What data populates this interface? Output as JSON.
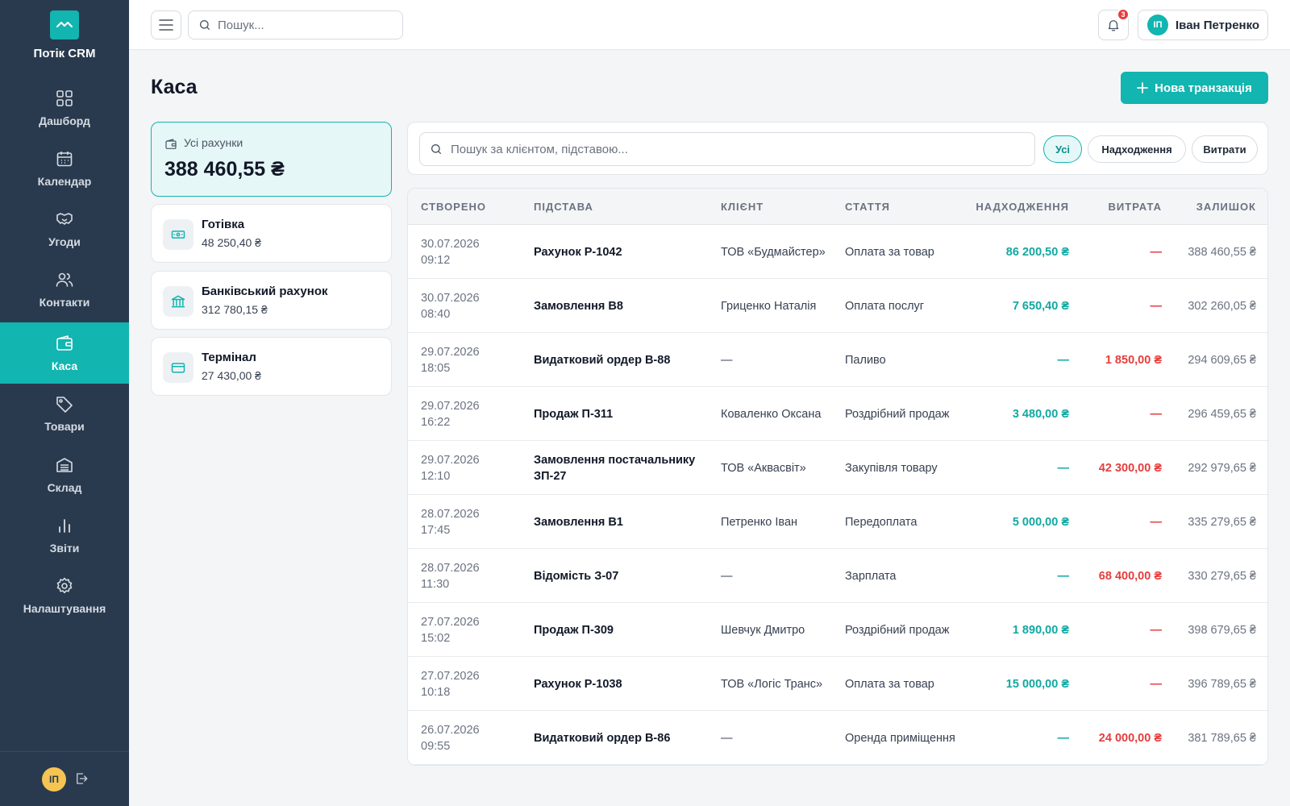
{
  "app": {
    "name": "Потік CRM"
  },
  "nav": [
    {
      "label": "Дашборд",
      "icon": "grid-icon"
    },
    {
      "label": "Календар",
      "icon": "calendar-icon"
    },
    {
      "label": "Угоди",
      "icon": "handshake-icon"
    },
    {
      "label": "Контакти",
      "icon": "users-icon"
    },
    {
      "label": "Каса",
      "icon": "wallet-icon",
      "active": true
    },
    {
      "label": "Товари",
      "icon": "tag-icon"
    },
    {
      "label": "Склад",
      "icon": "warehouse-icon"
    },
    {
      "label": "Звіти",
      "icon": "bar-chart-icon"
    },
    {
      "label": "Налаштування",
      "icon": "gear-icon"
    }
  ],
  "sidebar_footer": {
    "avatar_initials": "ІП"
  },
  "header": {
    "search_placeholder": "Пошук...",
    "notifications_count": "3",
    "user_initials": "ІП",
    "user_name": "Іван Петренко"
  },
  "page": {
    "title": "Каса",
    "new_button_label": "Нова транзакція"
  },
  "accounts": {
    "all": {
      "label": "Усі рахунки",
      "amount": "388 460,55 ₴"
    },
    "items": [
      {
        "name": "Готівка",
        "amount": "48 250,40 ₴",
        "icon": "cash-icon"
      },
      {
        "name": "Банківський рахунок",
        "amount": "312 780,15 ₴",
        "icon": "bank-icon"
      },
      {
        "name": "Термінал",
        "amount": "27 430,00 ₴",
        "icon": "card-icon"
      }
    ]
  },
  "filters": {
    "search_placeholder": "Пошук за клієнтом, підставою...",
    "chips": [
      "Усі",
      "Надходження",
      "Витрати"
    ],
    "active": "Усі"
  },
  "table": {
    "columns": {
      "created": "СТВОРЕНО",
      "basis": "ПІДСТАВА",
      "client": "КЛІЄНТ",
      "article": "СТАТТЯ",
      "income": "НАДХОДЖЕННЯ",
      "expense": "ВИТРАТА",
      "balance": "ЗАЛИШОК"
    },
    "rows": [
      {
        "date": "30.07.2026",
        "time": "09:12",
        "basis": "Рахунок Р-1042",
        "client": "ТОВ «Будмайстер»",
        "article": "Оплата за товар",
        "income": "86 200,50 ₴",
        "expense": "—",
        "balance": "388 460,55 ₴"
      },
      {
        "date": "30.07.2026",
        "time": "08:40",
        "basis": "Замовлення В8",
        "client": "Гриценко Наталія",
        "article": "Оплата послуг",
        "income": "7 650,40 ₴",
        "expense": "—",
        "balance": "302 260,05 ₴"
      },
      {
        "date": "29.07.2026",
        "time": "18:05",
        "basis": "Видатковий ордер В-88",
        "client": "—",
        "article": "Паливо",
        "income": "—",
        "expense": "1 850,00 ₴",
        "balance": "294 609,65 ₴"
      },
      {
        "date": "29.07.2026",
        "time": "16:22",
        "basis": "Продаж П-311",
        "client": "Коваленко Оксана",
        "article": "Роздрібний продаж",
        "income": "3 480,00 ₴",
        "expense": "—",
        "balance": "296 459,65 ₴"
      },
      {
        "date": "29.07.2026",
        "time": "12:10",
        "basis": "Замовлення постачальнику ЗП-27",
        "client": "ТОВ «Аквасвіт»",
        "article": "Закупівля товару",
        "income": "—",
        "expense": "42 300,00 ₴",
        "balance": "292 979,65 ₴"
      },
      {
        "date": "28.07.2026",
        "time": "17:45",
        "basis": "Замовлення В1",
        "client": "Петренко Іван",
        "article": "Передоплата",
        "income": "5 000,00 ₴",
        "expense": "—",
        "balance": "335 279,65 ₴"
      },
      {
        "date": "28.07.2026",
        "time": "11:30",
        "basis": "Відомість З-07",
        "client": "—",
        "article": "Зарплата",
        "income": "—",
        "expense": "68 400,00 ₴",
        "balance": "330 279,65 ₴"
      },
      {
        "date": "27.07.2026",
        "time": "15:02",
        "basis": "Продаж П-309",
        "client": "Шевчук Дмитро",
        "article": "Роздрібний продаж",
        "income": "1 890,00 ₴",
        "expense": "—",
        "balance": "398 679,65 ₴"
      },
      {
        "date": "27.07.2026",
        "time": "10:18",
        "basis": "Рахунок Р-1038",
        "client": "ТОВ «Логіс Транс»",
        "article": "Оплата за товар",
        "income": "15 000,00 ₴",
        "expense": "—",
        "balance": "396 789,65 ₴"
      },
      {
        "date": "26.07.2026",
        "time": "09:55",
        "basis": "Видатковий ордер В-86",
        "client": "—",
        "article": "Оренда приміщення",
        "income": "—",
        "expense": "24 000,00 ₴",
        "balance": "381 789,65 ₴"
      }
    ]
  },
  "colors": {
    "accent": "#12b5b0",
    "sidebar": "#2a3a4e",
    "income": "#12a8a3",
    "expense": "#e53e3e"
  }
}
